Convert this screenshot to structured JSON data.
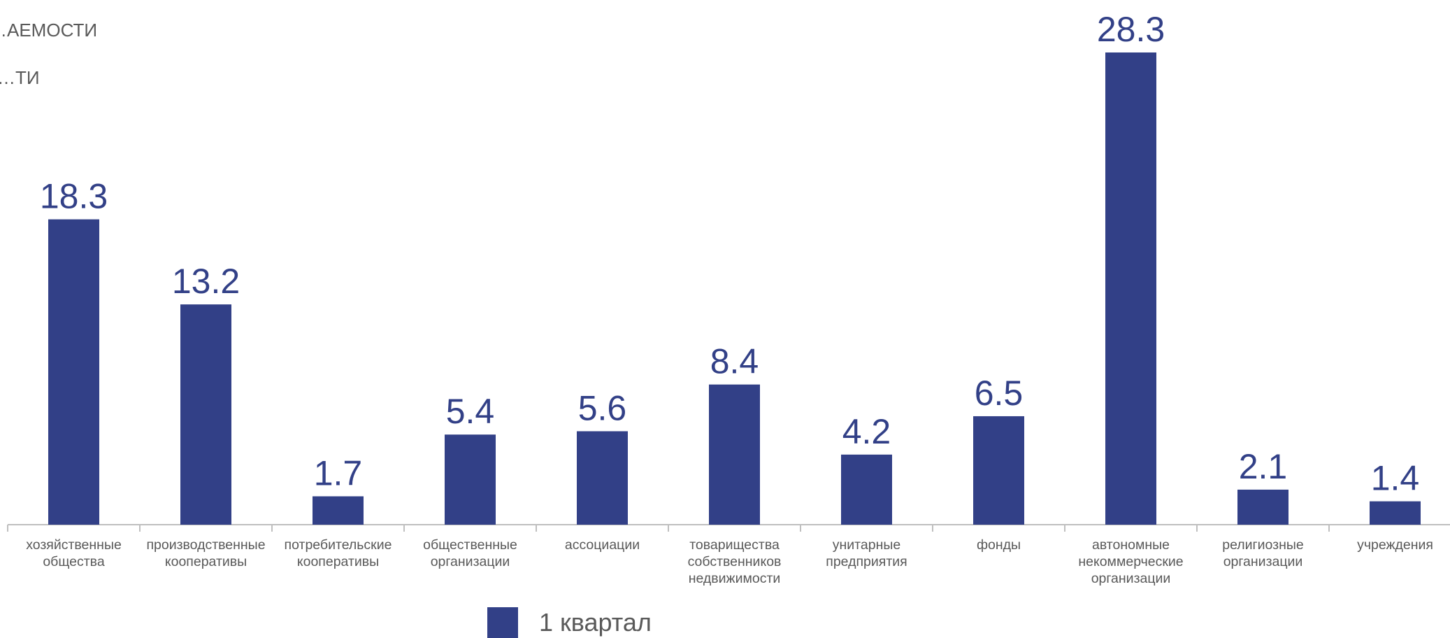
{
  "chart_data": {
    "type": "bar",
    "title_lines": [
      "…АЕМОСТИ",
      "…ТИ"
    ],
    "categories": [
      [
        "хозяйственные",
        "общества"
      ],
      [
        "производственные",
        "кооперативы"
      ],
      [
        "потребительские",
        "кооперативы"
      ],
      [
        "общественные",
        "организации"
      ],
      [
        "ассоциации"
      ],
      [
        "товарищества",
        "собственников",
        "недвижимости"
      ],
      [
        "унитарные",
        "предприятия"
      ],
      [
        "фонды"
      ],
      [
        "автономные",
        "некоммерческие",
        "организации"
      ],
      [
        "религиозные",
        "организации"
      ],
      [
        "учреждения"
      ]
    ],
    "series": [
      {
        "name": "1 квартал",
        "values": [
          18.3,
          13.2,
          1.7,
          5.4,
          5.6,
          8.4,
          4.2,
          6.5,
          28.3,
          2.1,
          1.4
        ]
      }
    ],
    "value_labels": [
      "18.3",
      "13.2",
      "1.7",
      "5.4",
      "5.6",
      "8.4",
      "4.2",
      "6.5",
      "28.3",
      "2.1",
      "1.4"
    ],
    "ylim": [
      0,
      28.3
    ],
    "grid": false,
    "legend_position": "bottom-center",
    "colors": {
      "bar": "#324087",
      "label": "#324087",
      "axis": "#bfbfbf",
      "text": "#595959"
    }
  }
}
